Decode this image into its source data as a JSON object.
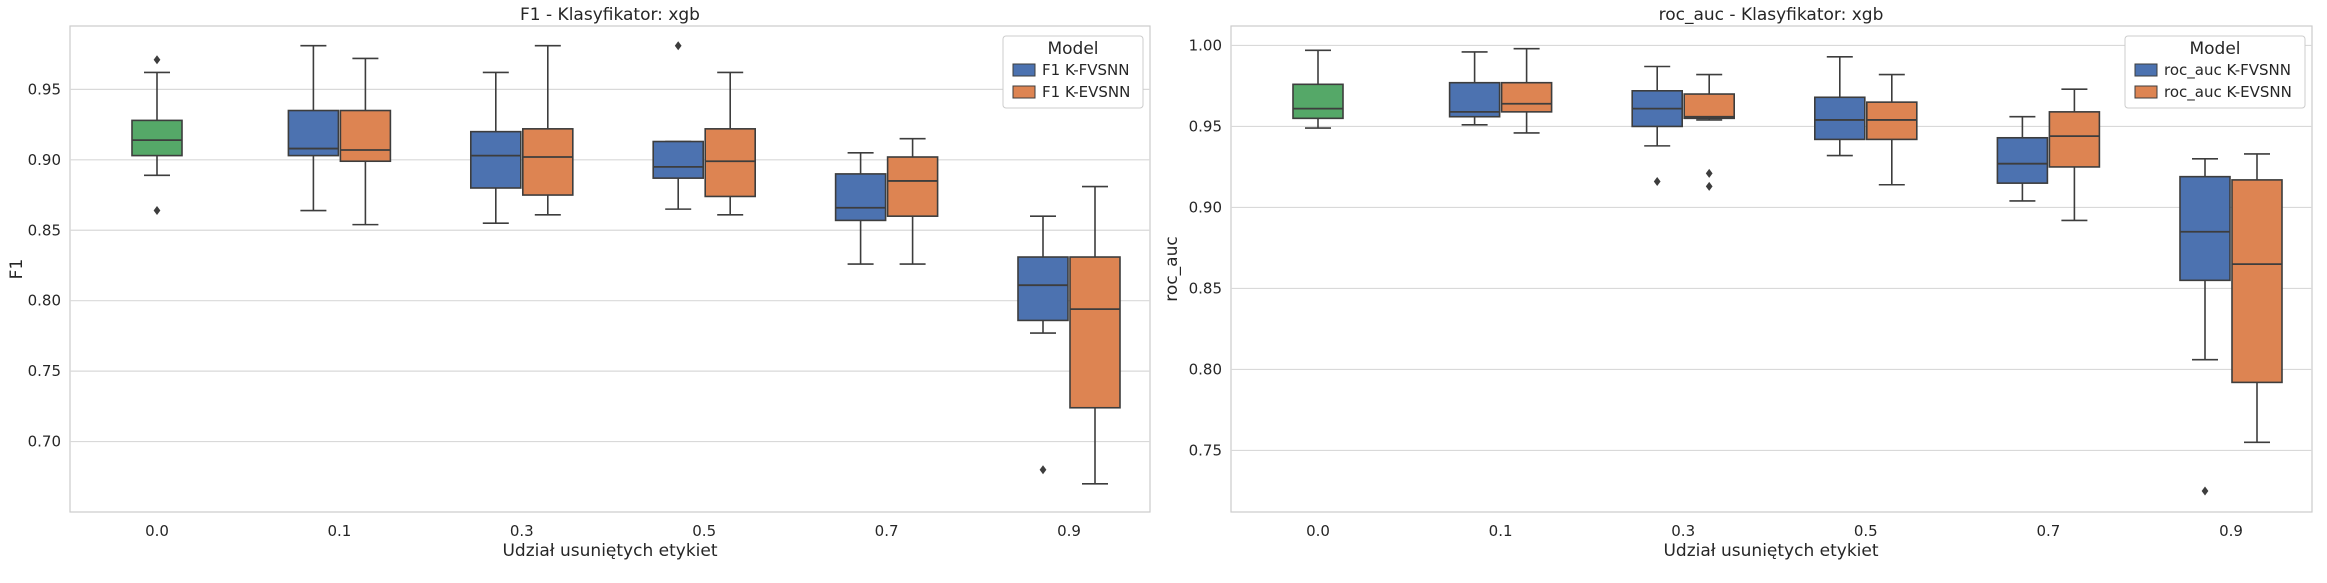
{
  "chart_data": [
    {
      "type": "box",
      "title": "F1 - Klasyfikator: xgb",
      "xlabel": "Udział usuniętych etykiet",
      "ylabel": "F1",
      "categories": [
        "0.0",
        "0.1",
        "0.3",
        "0.5",
        "0.7",
        "0.9"
      ],
      "ylim": [
        0.65,
        0.995
      ],
      "yticks": [
        "0.70",
        "0.75",
        "0.80",
        "0.85",
        "0.90",
        "0.95"
      ],
      "grid": "horizontal",
      "legend": {
        "title": "Model",
        "position": "top-right",
        "entries": [
          "F1 K-FVSNN",
          "F1 K-EVSNN"
        ]
      },
      "colors": {
        "baseline": "#55a868",
        "series1": "#4c72b0",
        "series2": "#dd8452",
        "line": "#3d3d3d",
        "grid": "#d9d9d9"
      },
      "baseline": {
        "category": "0.0",
        "box": {
          "whislo": 0.889,
          "q1": 0.903,
          "med": 0.914,
          "q3": 0.928,
          "whishi": 0.962,
          "fliers": [
            0.971,
            0.864
          ]
        }
      },
      "series": [
        {
          "name": "F1 K-FVSNN",
          "boxes": [
            {
              "category": "0.1",
              "whislo": 0.864,
              "q1": 0.903,
              "med": 0.908,
              "q3": 0.935,
              "whishi": 0.981,
              "fliers": []
            },
            {
              "category": "0.3",
              "whislo": 0.855,
              "q1": 0.88,
              "med": 0.903,
              "q3": 0.92,
              "whishi": 0.962,
              "fliers": []
            },
            {
              "category": "0.5",
              "whislo": 0.865,
              "q1": 0.887,
              "med": 0.895,
              "q3": 0.913,
              "whishi": 0.913,
              "fliers": [
                0.981
              ]
            },
            {
              "category": "0.7",
              "whislo": 0.826,
              "q1": 0.857,
              "med": 0.866,
              "q3": 0.89,
              "whishi": 0.905,
              "fliers": []
            },
            {
              "category": "0.9",
              "whislo": 0.777,
              "q1": 0.786,
              "med": 0.811,
              "q3": 0.831,
              "whishi": 0.86,
              "fliers": [
                0.68
              ]
            }
          ]
        },
        {
          "name": "F1 K-EVSNN",
          "boxes": [
            {
              "category": "0.1",
              "whislo": 0.854,
              "q1": 0.899,
              "med": 0.907,
              "q3": 0.935,
              "whishi": 0.972,
              "fliers": []
            },
            {
              "category": "0.3",
              "whislo": 0.861,
              "q1": 0.875,
              "med": 0.902,
              "q3": 0.922,
              "whishi": 0.981,
              "fliers": []
            },
            {
              "category": "0.5",
              "whislo": 0.861,
              "q1": 0.874,
              "med": 0.899,
              "q3": 0.922,
              "whishi": 0.962,
              "fliers": []
            },
            {
              "category": "0.7",
              "whislo": 0.826,
              "q1": 0.86,
              "med": 0.885,
              "q3": 0.902,
              "whishi": 0.915,
              "fliers": []
            },
            {
              "category": "0.9",
              "whislo": 0.67,
              "q1": 0.724,
              "med": 0.794,
              "q3": 0.831,
              "whishi": 0.881,
              "fliers": []
            }
          ]
        }
      ]
    },
    {
      "type": "box",
      "title": "roc_auc - Klasyfikator: xgb",
      "xlabel": "Udział usuniętych etykiet",
      "ylabel": "roc_auc",
      "categories": [
        "0.0",
        "0.1",
        "0.3",
        "0.5",
        "0.7",
        "0.9"
      ],
      "ylim": [
        0.712,
        1.012
      ],
      "yticks": [
        "0.75",
        "0.80",
        "0.85",
        "0.90",
        "0.95",
        "1.00"
      ],
      "grid": "horizontal",
      "legend": {
        "title": "Model",
        "position": "top-right",
        "entries": [
          "roc_auc K-FVSNN",
          "roc_auc K-EVSNN"
        ]
      },
      "colors": {
        "baseline": "#55a868",
        "series1": "#4c72b0",
        "series2": "#dd8452",
        "line": "#3d3d3d",
        "grid": "#d9d9d9"
      },
      "baseline": {
        "category": "0.0",
        "box": {
          "whislo": 0.949,
          "q1": 0.955,
          "med": 0.961,
          "q3": 0.976,
          "whishi": 0.997,
          "fliers": []
        }
      },
      "series": [
        {
          "name": "roc_auc K-FVSNN",
          "boxes": [
            {
              "category": "0.1",
              "whislo": 0.951,
              "q1": 0.956,
              "med": 0.959,
              "q3": 0.977,
              "whishi": 0.996,
              "fliers": []
            },
            {
              "category": "0.3",
              "whislo": 0.938,
              "q1": 0.95,
              "med": 0.961,
              "q3": 0.972,
              "whishi": 0.987,
              "fliers": [
                0.916
              ]
            },
            {
              "category": "0.5",
              "whislo": 0.932,
              "q1": 0.942,
              "med": 0.954,
              "q3": 0.968,
              "whishi": 0.993,
              "fliers": []
            },
            {
              "category": "0.7",
              "whislo": 0.904,
              "q1": 0.915,
              "med": 0.927,
              "q3": 0.943,
              "whishi": 0.956,
              "fliers": []
            },
            {
              "category": "0.9",
              "whislo": 0.806,
              "q1": 0.855,
              "med": 0.885,
              "q3": 0.919,
              "whishi": 0.93,
              "fliers": [
                0.725
              ]
            }
          ]
        },
        {
          "name": "roc_auc K-EVSNN",
          "boxes": [
            {
              "category": "0.1",
              "whislo": 0.946,
              "q1": 0.959,
              "med": 0.964,
              "q3": 0.977,
              "whishi": 0.998,
              "fliers": []
            },
            {
              "category": "0.3",
              "whislo": 0.954,
              "q1": 0.955,
              "med": 0.956,
              "q3": 0.97,
              "whishi": 0.982,
              "fliers": [
                0.921,
                0.913
              ]
            },
            {
              "category": "0.5",
              "whislo": 0.914,
              "q1": 0.942,
              "med": 0.954,
              "q3": 0.965,
              "whishi": 0.982,
              "fliers": []
            },
            {
              "category": "0.7",
              "whislo": 0.892,
              "q1": 0.925,
              "med": 0.944,
              "q3": 0.959,
              "whishi": 0.973,
              "fliers": []
            },
            {
              "category": "0.9",
              "whislo": 0.755,
              "q1": 0.792,
              "med": 0.865,
              "q3": 0.917,
              "whishi": 0.933,
              "fliers": []
            }
          ]
        }
      ]
    }
  ]
}
